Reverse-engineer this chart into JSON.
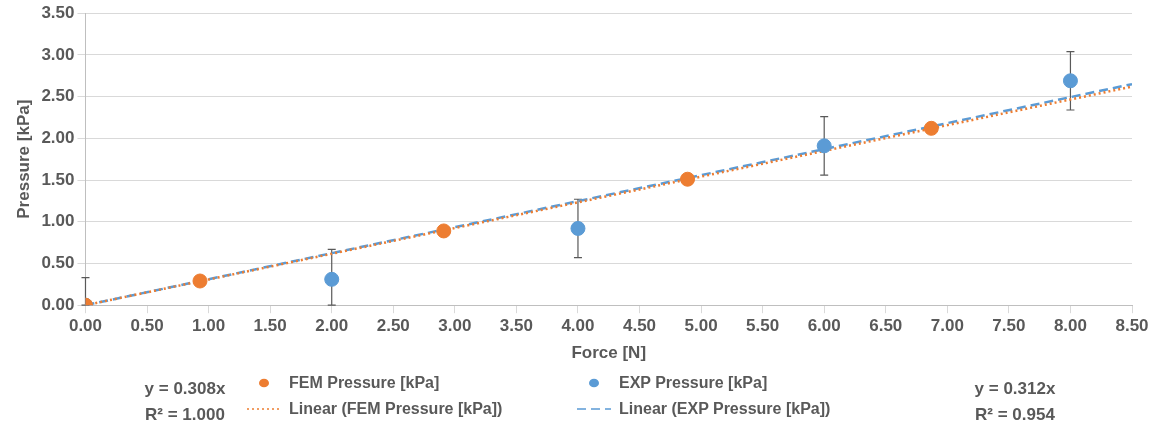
{
  "chart_data": {
    "type": "scatter",
    "xlabel": "Force [N]",
    "ylabel": "Pressure [kPa]",
    "xlim": [
      0,
      8.5
    ],
    "ylim": [
      0,
      3.5
    ],
    "xticks": [
      {
        "value": 0,
        "label": "0.00"
      },
      {
        "value": 0.5,
        "label": "0.50"
      },
      {
        "value": 1,
        "label": "1.00"
      },
      {
        "value": 1.5,
        "label": "1.50"
      },
      {
        "value": 2,
        "label": "2.00"
      },
      {
        "value": 2.5,
        "label": "2.50"
      },
      {
        "value": 3,
        "label": "3.00"
      },
      {
        "value": 3.5,
        "label": "3.50"
      },
      {
        "value": 4,
        "label": "4.00"
      },
      {
        "value": 4.5,
        "label": "4.50"
      },
      {
        "value": 5,
        "label": "5.00"
      },
      {
        "value": 5.5,
        "label": "5.50"
      },
      {
        "value": 6,
        "label": "6.00"
      },
      {
        "value": 6.5,
        "label": "6.50"
      },
      {
        "value": 7,
        "label": "7.00"
      },
      {
        "value": 7.5,
        "label": "7.50"
      },
      {
        "value": 8,
        "label": "8.00"
      },
      {
        "value": 8.5,
        "label": "8.50"
      }
    ],
    "yticks": [
      {
        "value": 0,
        "label": "0.00"
      },
      {
        "value": 0.5,
        "label": "0.50"
      },
      {
        "value": 1,
        "label": "1.00"
      },
      {
        "value": 1.5,
        "label": "1.50"
      },
      {
        "value": 2,
        "label": "2.00"
      },
      {
        "value": 2.5,
        "label": "2.50"
      },
      {
        "value": 3,
        "label": "3.00"
      },
      {
        "value": 3.5,
        "label": "3.50"
      }
    ],
    "grid": "y",
    "legend": "bottom",
    "marker": "circle",
    "series": [
      {
        "name": "FEM Pressure [kPa]",
        "color": "#ed7d31",
        "x": [
          0,
          0.93,
          2.91,
          4.89,
          6.87
        ],
        "values": [
          0,
          0.29,
          0.89,
          1.51,
          2.12
        ]
      },
      {
        "name": "EXP Pressure [kPa]",
        "color": "#5b9bd5",
        "x": [
          0,
          2,
          4,
          6,
          8
        ],
        "values": [
          0,
          0.31,
          0.92,
          1.91,
          2.69
        ],
        "errors": [
          [
            0,
            0.33
          ],
          [
            0,
            0.67
          ],
          0.35,
          0.35,
          0.35
        ]
      },
      {
        "name": "Linear (FEM Pressure [kPa])",
        "type": "line",
        "line_style": "dotted",
        "marker": "none",
        "color": "#ed7d31",
        "x": [
          0,
          8.5
        ],
        "values": [
          0,
          2.62
        ]
      },
      {
        "name": "Linear (EXP Pressure [kPa])",
        "type": "line",
        "line_style": "dashed",
        "marker": "none",
        "color": "#5b9bd5",
        "x": [
          0,
          8.5
        ],
        "values": [
          0,
          2.65
        ]
      }
    ],
    "annotations": [
      "y = 0.308x\nR² = 1.000",
      "y = 0.312x\nR² = 0.954"
    ]
  }
}
